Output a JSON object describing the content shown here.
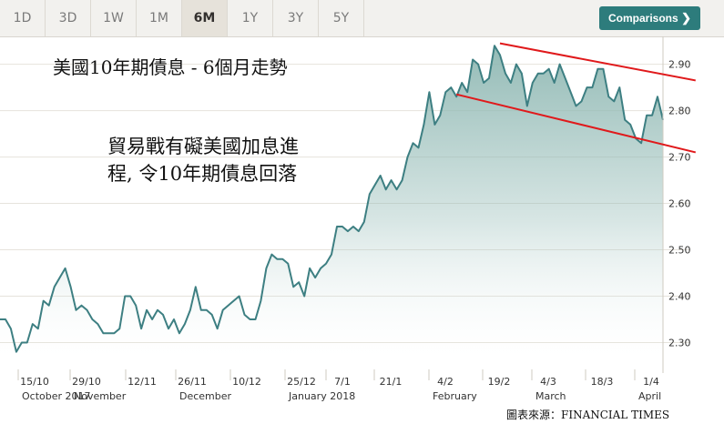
{
  "toolbar": {
    "ranges": [
      "1D",
      "3D",
      "1W",
      "1M",
      "6M",
      "1Y",
      "3Y",
      "5Y"
    ],
    "active_range": "6M",
    "comparisons_label": "Comparisons",
    "comparisons_icon": "chevron-right-icon"
  },
  "annotations": {
    "title": "美國10年期債息 - 6個月走勢",
    "body_line1": "貿易戰有礙美國加息進",
    "body_line2": "程, 令10年期債息回落"
  },
  "source": "圖表來源：FINANCIAL TIMES",
  "colors": {
    "line": "#3d7f82",
    "area_top": "#8fb8b3",
    "trend_lines": "#e0191b",
    "active_button": "#2d7c7c"
  },
  "chart_data": {
    "type": "area",
    "ylim": [
      2.25,
      2.96
    ],
    "y_ticks": [
      "2.90",
      "2.80",
      "2.70",
      "2.60",
      "2.50",
      "2.40",
      "2.30"
    ],
    "grid": true,
    "axis_position": "right",
    "x_ticks": [
      {
        "day": "15/10",
        "month": "October 2017"
      },
      {
        "day": "29/10",
        "month": "November"
      },
      {
        "day": "12/11",
        "month": ""
      },
      {
        "day": "26/11",
        "month": "December"
      },
      {
        "day": "10/12",
        "month": ""
      },
      {
        "day": "25/12",
        "month": "January 2018"
      },
      {
        "day": "7/1",
        "month": ""
      },
      {
        "day": "21/1",
        "month": ""
      },
      {
        "day": "4/2",
        "month": "February"
      },
      {
        "day": "19/2",
        "month": ""
      },
      {
        "day": "4/3",
        "month": "March"
      },
      {
        "day": "18/3",
        "month": ""
      },
      {
        "day": "1/4",
        "month": "April"
      }
    ],
    "series": [
      {
        "values": [
          2.35,
          2.35,
          2.33,
          2.28,
          2.3,
          2.3,
          2.34,
          2.33,
          2.39,
          2.38,
          2.42,
          2.44,
          2.46,
          2.42,
          2.37,
          2.38,
          2.37,
          2.35,
          2.34,
          2.32,
          2.32,
          2.32,
          2.33,
          2.4,
          2.4,
          2.38,
          2.33,
          2.37,
          2.35,
          2.37,
          2.36,
          2.33,
          2.35,
          2.32,
          2.34,
          2.37,
          2.42,
          2.37,
          2.37,
          2.36,
          2.33,
          2.37,
          2.38,
          2.39,
          2.4,
          2.36,
          2.35,
          2.35,
          2.39,
          2.46,
          2.49,
          2.48,
          2.48,
          2.47,
          2.42,
          2.43,
          2.4,
          2.46,
          2.44,
          2.46,
          2.47,
          2.49,
          2.55,
          2.55,
          2.54,
          2.55,
          2.54,
          2.56,
          2.62,
          2.64,
          2.66,
          2.63,
          2.65,
          2.63,
          2.65,
          2.7,
          2.73,
          2.72,
          2.77,
          2.84,
          2.77,
          2.79,
          2.84,
          2.85,
          2.83,
          2.86,
          2.84,
          2.91,
          2.9,
          2.86,
          2.87,
          2.94,
          2.92,
          2.88,
          2.86,
          2.9,
          2.88,
          2.81,
          2.86,
          2.88,
          2.88,
          2.89,
          2.86,
          2.9,
          2.87,
          2.84,
          2.81,
          2.82,
          2.85,
          2.85,
          2.89,
          2.89,
          2.83,
          2.82,
          2.85,
          2.78,
          2.77,
          2.74,
          2.73,
          2.79,
          2.79,
          2.83,
          2.78
        ]
      }
    ],
    "trend_lines": [
      {
        "start_index": 92,
        "start_value": 2.945,
        "end_index": 128,
        "end_value": 2.865
      },
      {
        "start_index": 84,
        "start_value": 2.835,
        "end_index": 128,
        "end_value": 2.71
      }
    ]
  }
}
